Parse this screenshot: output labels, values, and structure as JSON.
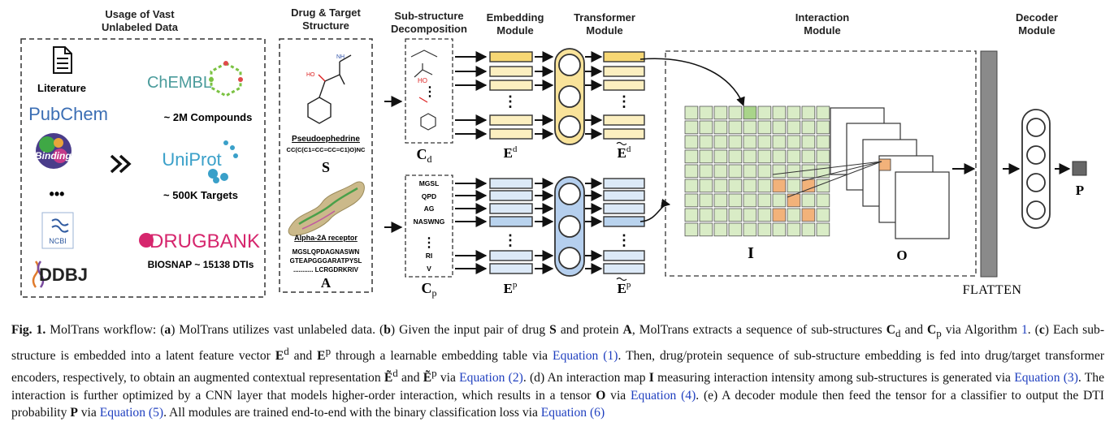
{
  "headers": {
    "usage_l1": "Usage of Vast",
    "usage_l2": "Unlabeled Data",
    "drug_l1": "Drug & Target",
    "drug_l2": "Structure",
    "sub_l1": "Sub-structure",
    "sub_l2": "Decomposition",
    "emb_l1": "Embedding",
    "emb_l2": "Module",
    "trans_l1": "Transformer",
    "trans_l2": "Module",
    "inter": "Interaction",
    "inter_l2": "Module",
    "dec_l1": "Decoder",
    "dec_l2": "Module"
  },
  "sources": {
    "literature": "Literature",
    "pubchem": "PubChem",
    "bindingdb": "BindingDB",
    "ellipsis": "•••",
    "ncbi": "NCBI",
    "ddbj": "DDBJ",
    "chembl": "ChEMBL",
    "compounds": "~ 2M Compounds",
    "uniprot": "UniProt",
    "targets": "~ 500K Targets",
    "drugbank": "DRUGBANK",
    "biosnap": "BIOSNAP ~ 15138 DTIs"
  },
  "drug": {
    "mol_nh": "NH",
    "mol_ho": "HO",
    "name": "Pseudoephedrine",
    "smiles": "CC(C(C1=CC=CC=C1)O)NC",
    "symbol": "S",
    "protein_name": "Alpha-2A receptor",
    "seq1": "MGSLQPDAGNASWN",
    "seq2": "GTEAPGGGARATPYSL",
    "seq3": "........... LCRGDRKRIV",
    "protein_symbol": "A"
  },
  "substructures": {
    "cd_label": "C",
    "cd_sub": "d",
    "cp_label": "C",
    "cp_sub": "p",
    "protein_items": [
      "MGSL",
      "QPD",
      "AG",
      "NASWNG",
      "RI",
      "V"
    ],
    "vdots": "⋮"
  },
  "labels": {
    "ed": "E",
    "ed_sup": "d",
    "ep": "E",
    "ep_sup": "p",
    "etd": "E",
    "etd_sup": "d",
    "etp": "E",
    "etp_sup": "p",
    "i": "I",
    "o": "O",
    "flatten": "FLATTEN",
    "p": "P"
  },
  "colors": {
    "drug_emb": "#f7d774",
    "drug_emb_light": "#fcefc0",
    "prot_emb": "#b9d3ee",
    "prot_emb_light": "#dce9f7",
    "transformer_drug": "#f9e39a",
    "transformer_prot": "#b5cfee",
    "grid_cell": "#d9ecc6",
    "grid_highlight": "#a9d48a",
    "interaction_orange": "#f2b27a",
    "flatten_bar": "#8a8a8a",
    "output_box": "#666666"
  },
  "caption": {
    "fig": "Fig. 1.",
    "t1": " MolTrans workflow: (",
    "a": "a",
    "t2": ") MolTrans utilizes vast unlabeled data. (",
    "b": "b",
    "t3": ") Given the input pair of drug ",
    "S": "S",
    "t4": " and protein ",
    "A": "A",
    "t5": ", MolTrans extracts a sequence of sub-structures ",
    "Cd": "C",
    "Cd_sub": "d",
    "t6": " and ",
    "Cp": "C",
    "Cp_sub": "p",
    "t7": " via Algorithm ",
    "alg": "1",
    "t8": ". (",
    "c": "c",
    "t9": ") Each sub-structure is embedded into a latent feature vector ",
    "Ed": "E",
    "Ed_sup": "d",
    "t10": " and ",
    "Ep": "E",
    "Ep_sup": "p",
    "t11": " through a learnable embedding table via ",
    "eq1": "Equation (1)",
    "t12": ". Then, drug/protein sequence of sub-structure embedding is fed into drug/target transformer encoders, respectively, to obtain an augmented contextual representation ",
    "Etd": "Ẽ",
    "Etd_sup": "d",
    "t13": " and ",
    "Etp": "Ẽ",
    "Etp_sup": "p",
    "t14": " via ",
    "eq2": "Equation (2)",
    "t15": ". (d) An interaction map ",
    "I": "I",
    "t16": " measuring interaction intensity among sub-structures is generated via ",
    "eq3": "Equation (3)",
    "t17": ". The interaction is further optimized by a CNN layer that models higher-order interaction, which results in a tensor ",
    "O": "O",
    "t18": " via ",
    "eq4": "Equation (4)",
    "t19": ". (e) A decoder module then feed the tensor for a classifier to output the DTI probability ",
    "P": "P",
    "t20": " via ",
    "eq5": "Equation (5)",
    "t21": ". All modules are trained end-to-end with the binary classification loss via ",
    "eq6": "Equation (6)"
  }
}
